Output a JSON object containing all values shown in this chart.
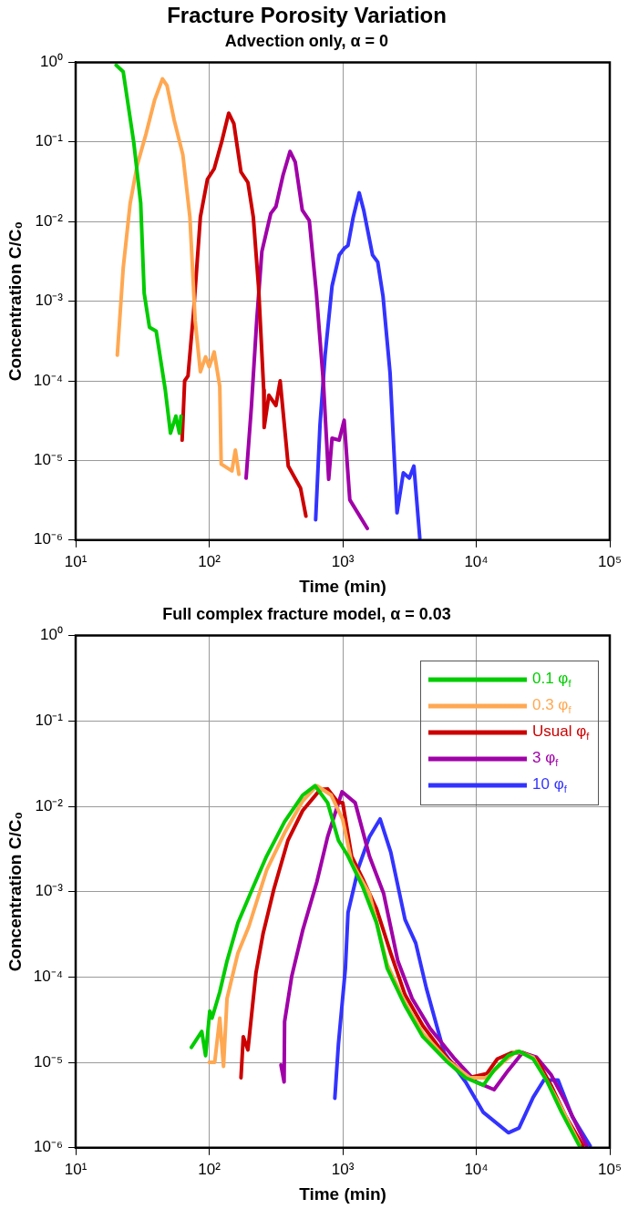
{
  "chart_data": [
    {
      "type": "line",
      "title": "Fracture Porosity Variation",
      "subtitle": "Advection only, α = 0",
      "xlabel": "Time (min)",
      "ylabel": "Concentration C/C₀",
      "log": "xy",
      "grid": true,
      "xlim": [
        10,
        100000
      ],
      "xticks": [
        {
          "value": 10,
          "label": "10¹"
        },
        {
          "value": 100,
          "label": "10²"
        },
        {
          "value": 1000,
          "label": "10³"
        },
        {
          "value": 10000,
          "label": "10⁴"
        },
        {
          "value": 100000,
          "label": "10⁵"
        }
      ],
      "ylim": [
        1e-06,
        1
      ],
      "yticks": [
        {
          "value": 1e-06,
          "label": "10⁻⁶"
        },
        {
          "value": 1e-05,
          "label": "10⁻⁵"
        },
        {
          "value": 0.0001,
          "label": "10⁻⁴"
        },
        {
          "value": 0.001,
          "label": "10⁻³"
        },
        {
          "value": 0.01,
          "label": "10⁻²"
        },
        {
          "value": 0.1,
          "label": "10⁻¹"
        },
        {
          "value": 1,
          "label": "10⁰"
        }
      ],
      "series": [
        {
          "color": "#00cc00",
          "x": [
            20.1,
            22.7,
            27.2,
            30.7,
            32.6,
            35.7,
            40.1,
            46.9,
            51.3,
            56.3,
            59.8,
            61.5
          ],
          "values": [
            0.92,
            0.76,
            0.1,
            0.017,
            0.00126,
            0.00047,
            0.00042,
            7.7e-05,
            2.2e-05,
            3.6e-05,
            2.2e-05,
            3.6e-05
          ]
        },
        {
          "color": "#ffa852",
          "x": [
            20.5,
            22.7,
            25.6,
            28.9,
            33.6,
            39.1,
            44.7,
            48.3,
            54.6,
            63.5,
            71.7,
            78.5,
            85.9,
            94,
            100,
            109,
            120,
            123,
            148,
            157,
            167
          ],
          "values": [
            0.00021,
            0.0026,
            0.017,
            0.051,
            0.125,
            0.34,
            0.62,
            0.51,
            0.19,
            0.069,
            0.0114,
            0.00057,
            0.00013,
            0.0002,
            0.00015,
            0.00023,
            8.5e-05,
            9e-06,
            7.4e-06,
            1.35e-05,
            6.7e-06
          ]
        },
        {
          "color": "#cc0000",
          "x": [
            62.7,
            65.5,
            69.4,
            76.2,
            85.9,
            97,
            109,
            124,
            140,
            153,
            173,
            195,
            214,
            234,
            256,
            258,
            280,
            316,
            340,
            391,
            483,
            530
          ],
          "values": [
            1.8e-05,
            0.0001,
            0.000115,
            0.00069,
            0.0114,
            0.034,
            0.046,
            0.1,
            0.23,
            0.17,
            0.042,
            0.031,
            0.0114,
            0.00155,
            7.7e-05,
            2.6e-05,
            6.6e-05,
            4.9e-05,
            0.0001,
            8.5e-06,
            4.5e-06,
            2e-06
          ]
        },
        {
          "color": "#a000a8",
          "x": [
            189,
            207,
            227,
            248,
            289,
            316,
            357,
            403,
            441,
            498,
            562,
            635,
            717,
            785,
            832,
            941,
            1025,
            1130,
            1528
          ],
          "values": [
            6e-06,
            4.7e-05,
            0.00057,
            0.0042,
            0.0126,
            0.0154,
            0.038,
            0.076,
            0.056,
            0.0139,
            0.0103,
            0.00126,
            9.4e-05,
            5.8e-06,
            1.9e-05,
            1.8e-05,
            3.2e-05,
            3.2e-06,
            1.4e-06
          ]
        },
        {
          "color": "#3333ff",
          "x": [
            627,
            676,
            738,
            832,
            941,
            1025,
            1095,
            1199,
            1328,
            1436,
            1672,
            1829,
            2004,
            2262,
            2551,
            2843,
            3154,
            3414,
            3779
          ],
          "values": [
            1.8e-06,
            2.8e-05,
            0.00021,
            0.00155,
            0.0038,
            0.0046,
            0.005,
            0.0114,
            0.023,
            0.0139,
            0.0038,
            0.0031,
            0.00115,
            0.000126,
            2.2e-06,
            7e-06,
            6e-06,
            8.5e-06,
            1.05e-06
          ]
        }
      ]
    },
    {
      "type": "line",
      "title": "Full complex fracture model, α = 0.03",
      "xlabel": "Time (min)",
      "ylabel": "Concentration C/C₀",
      "log": "xy",
      "grid": true,
      "legend": "top right",
      "xlim": [
        10,
        100000
      ],
      "xticks": [
        {
          "value": 10,
          "label": "10¹"
        },
        {
          "value": 100,
          "label": "10²"
        },
        {
          "value": 1000,
          "label": "10³"
        },
        {
          "value": 10000,
          "label": "10⁴"
        },
        {
          "value": 100000,
          "label": "10⁵"
        }
      ],
      "ylim": [
        1e-06,
        1
      ],
      "yticks": [
        {
          "value": 1e-06,
          "label": "10⁻⁶"
        },
        {
          "value": 1e-05,
          "label": "10⁻⁵"
        },
        {
          "value": 0.0001,
          "label": "10⁻⁴"
        },
        {
          "value": 0.001,
          "label": "10⁻³"
        },
        {
          "value": 0.01,
          "label": "10⁻²"
        },
        {
          "value": 0.1,
          "label": "10⁻¹"
        },
        {
          "value": 1,
          "label": "10⁰"
        }
      ],
      "series": [
        {
          "name": "0.1 φ$_{f}$",
          "color": "#00cc00",
          "x": [
            73.5,
            88,
            94,
            101,
            105,
            120,
            136,
            164,
            210,
            269,
            367,
            501,
            621,
            771,
            929,
            1096,
            1402,
            1792,
            2155,
            2930,
            3981,
            6120,
            8318,
            11300,
            13600,
            17400,
            20900,
            26700,
            34100,
            43600,
            59300
          ],
          "values": [
            1.5e-05,
            2.3e-05,
            1.2e-05,
            4e-05,
            3.3e-05,
            6.7e-05,
            0.000154,
            0.00043,
            0.00107,
            0.0026,
            0.0066,
            0.0135,
            0.0174,
            0.011,
            0.00398,
            0.0026,
            0.00117,
            0.00043,
            0.000126,
            4.6e-05,
            2e-05,
            1e-05,
            6.6e-06,
            5.4e-06,
            8.1e-06,
            1.2e-05,
            1.35e-05,
            1.1e-05,
            5.9e-06,
            2.6e-06,
            1.05e-06
          ]
        },
        {
          "name": "0.3 φ$_{f}$",
          "color": "#ffa852",
          "x": [
            100,
            110,
            120,
            128,
            136,
            164,
            198,
            269,
            367,
            501,
            640,
            820,
            1000,
            1166,
            1585,
            2155,
            2930,
            3981,
            6120,
            9000,
            12000,
            15800,
            20000,
            26700,
            34100,
            43600,
            59300
          ],
          "values": [
            1e-05,
            1e-05,
            3.3e-05,
            9e-06,
            5.6e-05,
            0.00019,
            0.00039,
            0.00178,
            0.0049,
            0.0115,
            0.0174,
            0.0135,
            0.007,
            0.0022,
            0.00095,
            0.00014,
            5e-05,
            2.2e-05,
            1.05e-05,
            6.6e-06,
            6.6e-06,
            1e-05,
            1.35e-05,
            1.15e-05,
            5.9e-06,
            2.9e-06,
            1.1e-06
          ]
        },
        {
          "name": "Usual φ$_{f}$",
          "color": "#cc0000",
          "x": [
            173,
            180,
            195,
            224,
            253,
            305,
            389,
            501,
            681,
            771,
            929,
            1000,
            1166,
            1402,
            1792,
            2290,
            2930,
            3981,
            6120,
            8800,
            12000,
            14400,
            18500,
            22200,
            28300,
            36300,
            46400,
            63000
          ],
          "values": [
            6.6e-06,
            2e-05,
            1.4e-05,
            0.000112,
            0.00032,
            0.00107,
            0.004,
            0.0089,
            0.0158,
            0.016,
            0.011,
            0.011,
            0.0026,
            0.00145,
            0.00063,
            0.00019,
            6.2e-05,
            2.7e-05,
            1.1e-05,
            6.6e-06,
            7.4e-06,
            1.1e-05,
            1.3e-05,
            1.3e-05,
            1.1e-05,
            5.4e-06,
            2.4e-06,
            1.05e-06
          ]
        },
        {
          "name": "3 φ$_{f}$",
          "color": "#a000a8",
          "x": [
            345,
            364,
            367,
            415,
            501,
            640,
            771,
            988,
            1240,
            1585,
            2026,
            2588,
            3311,
            4510,
            6900,
            10000,
            13600,
            17400,
            22200,
            28300,
            36300,
            46400,
            67100
          ],
          "values": [
            9.3e-06,
            5.9e-06,
            3e-05,
            0.000102,
            0.00035,
            0.0013,
            0.0044,
            0.0148,
            0.011,
            0.0026,
            0.00095,
            0.000154,
            5.6e-05,
            2.5e-05,
            1.1e-05,
            5.9e-06,
            4.8e-06,
            8.1e-06,
            1.3e-05,
            1.15e-05,
            7.2e-06,
            3.5e-06,
            1.05e-06
          ]
        },
        {
          "name": "10 φ$_{f}$",
          "color": "#3333ff",
          "x": [
            873,
            929,
            1047,
            1096,
            1318,
            1585,
            1905,
            2290,
            2930,
            3522,
            4230,
            5754,
            8318,
            11300,
            17400,
            20900,
            26700,
            32100,
            41000,
            52500,
            71300
          ],
          "values": [
            3.8e-06,
            1.65e-05,
            0.000126,
            0.00057,
            0.00195,
            0.0044,
            0.0071,
            0.0029,
            0.00047,
            0.00025,
            7.4e-05,
            1.3e-05,
            5.9e-06,
            2.6e-06,
            1.5e-06,
            1.7e-06,
            3.9e-06,
            6.2e-06,
            6.2e-06,
            2.3e-06,
            1.05e-06
          ]
        }
      ]
    }
  ]
}
